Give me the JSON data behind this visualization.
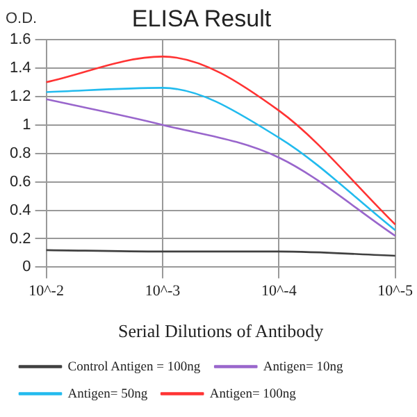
{
  "chart_data": {
    "type": "line",
    "title": "ELISA Result",
    "ylabel": "O.D.",
    "xlabel": "Serial Dilutions of Antibody",
    "categories": [
      "10^-2",
      "10^-3",
      "10^-4",
      "10^-5"
    ],
    "series": [
      {
        "name": "Control Antigen = 100ng",
        "color": "#404040",
        "values": [
          0.12,
          0.11,
          0.11,
          0.08
        ]
      },
      {
        "name": "Antigen= 10ng",
        "color": "#9966cc",
        "values": [
          1.18,
          1.0,
          0.77,
          0.22
        ]
      },
      {
        "name": "Antigen= 50ng",
        "color": "#22bbee",
        "values": [
          1.23,
          1.26,
          0.91,
          0.26
        ]
      },
      {
        "name": "Antigen= 100ng",
        "color": "#ff3333",
        "values": [
          1.3,
          1.48,
          1.1,
          0.3
        ]
      }
    ],
    "ylim": [
      0,
      1.6
    ],
    "yticks": [
      0,
      0.2,
      0.4,
      0.6,
      0.8,
      1,
      1.2,
      1.4,
      1.6
    ],
    "grid": true,
    "legend": "bottom",
    "marker": "none",
    "line_style": "solid"
  }
}
